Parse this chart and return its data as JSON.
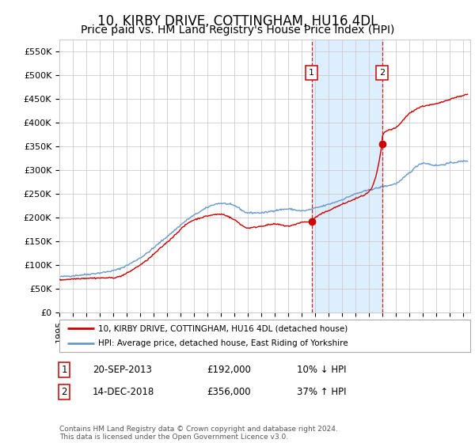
{
  "title": "10, KIRBY DRIVE, COTTINGHAM, HU16 4DL",
  "subtitle": "Price paid vs. HM Land Registry's House Price Index (HPI)",
  "ylim": [
    0,
    575000
  ],
  "yticks": [
    0,
    50000,
    100000,
    150000,
    200000,
    250000,
    300000,
    350000,
    400000,
    450000,
    500000,
    550000
  ],
  "ytick_labels": [
    "£0",
    "£50K",
    "£100K",
    "£150K",
    "£200K",
    "£250K",
    "£300K",
    "£350K",
    "£400K",
    "£450K",
    "£500K",
    "£550K"
  ],
  "xlim_start": 1995.0,
  "xlim_end": 2025.5,
  "sale1_year": 2013.72,
  "sale1_price": 192000,
  "sale1_label": "1",
  "sale1_date": "20-SEP-2013",
  "sale1_amount": "£192,000",
  "sale1_note": "10% ↓ HPI",
  "sale2_year": 2018.95,
  "sale2_price": 356000,
  "sale2_label": "2",
  "sale2_date": "14-DEC-2018",
  "sale2_amount": "£356,000",
  "sale2_note": "37% ↑ HPI",
  "red_line_color": "#cc0000",
  "blue_line_color": "#6699cc",
  "shade_color": "#ddeeff",
  "background_color": "#ffffff",
  "grid_color": "#cccccc",
  "title_fontsize": 12,
  "subtitle_fontsize": 10,
  "tick_fontsize": 8,
  "legend_label_red": "10, KIRBY DRIVE, COTTINGHAM, HU16 4DL (detached house)",
  "legend_label_blue": "HPI: Average price, detached house, East Riding of Yorkshire",
  "footer": "Contains HM Land Registry data © Crown copyright and database right 2024.\nThis data is licensed under the Open Government Licence v3.0.",
  "hpi_seed": 42,
  "hpi_knots_t": [
    1995,
    1997,
    1999,
    2001,
    2003,
    2005,
    2007,
    2008,
    2009,
    2010,
    2011,
    2012,
    2013,
    2014,
    2015,
    2016,
    2017,
    2018,
    2019,
    2020,
    2021,
    2022,
    2023,
    2024,
    2025.3
  ],
  "hpi_knots_v": [
    75000,
    80000,
    88000,
    115000,
    160000,
    205000,
    230000,
    225000,
    210000,
    210000,
    215000,
    218000,
    214000,
    220000,
    228000,
    238000,
    250000,
    258000,
    265000,
    272000,
    295000,
    315000,
    310000,
    315000,
    320000
  ],
  "red_knots_t": [
    1995,
    1997,
    1999,
    2001,
    2003,
    2005,
    2007,
    2008,
    2009,
    2010,
    2011,
    2012,
    2013,
    2013.72,
    2014,
    2015,
    2016,
    2017,
    2018,
    2018.95,
    2019,
    2020,
    2021,
    2022,
    2023,
    2024,
    2025.3
  ],
  "red_knots_v": [
    68000,
    72000,
    73000,
    100000,
    148000,
    195000,
    207000,
    195000,
    178000,
    182000,
    186000,
    182000,
    190000,
    192000,
    200000,
    215000,
    228000,
    240000,
    255000,
    356000,
    375000,
    390000,
    420000,
    435000,
    440000,
    450000,
    460000
  ]
}
